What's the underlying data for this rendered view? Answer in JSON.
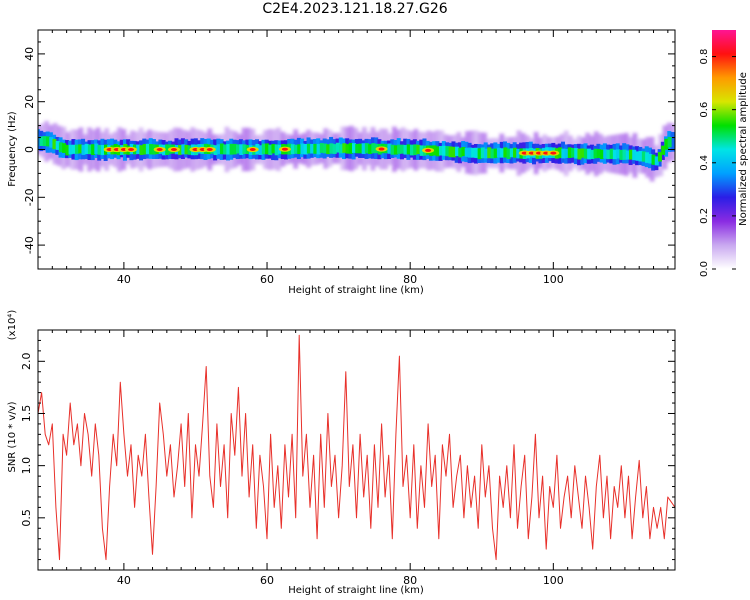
{
  "figure": {
    "title": "C2E4.2023.121.18.27.G26"
  },
  "chart_data": [
    {
      "type": "heatmap",
      "xlabel": "Height of straight line (km)",
      "ylabel": "Frequency (Hz)",
      "xlim": [
        28,
        117
      ],
      "ylim": [
        -50,
        50
      ],
      "xticks": [
        40,
        60,
        80,
        100
      ],
      "yticks": [
        -40,
        -20,
        0,
        20,
        40
      ],
      "grid": false,
      "colormap": [
        "#ffffff",
        "#c9a8f0",
        "#8a2be2",
        "#2a1ee6",
        "#00a0ff",
        "#00e5e5",
        "#00e000",
        "#d8e600",
        "#ff9a00",
        "#ff1010",
        "#ff1493"
      ],
      "colorbar": {
        "label": "Normalized spectral amplitude",
        "range": [
          0.0,
          0.9
        ],
        "ticks": [
          0.0,
          0.2,
          0.4,
          0.6,
          0.8
        ]
      },
      "band": {
        "center_hz": [
          [
            28,
            4
          ],
          [
            30,
            3
          ],
          [
            32,
            0
          ],
          [
            40,
            0
          ],
          [
            50,
            0
          ],
          [
            60,
            0
          ],
          [
            70,
            0.5
          ],
          [
            80,
            0
          ],
          [
            90,
            -1.5
          ],
          [
            100,
            -1.5
          ],
          [
            110,
            -2
          ],
          [
            113,
            -3
          ],
          [
            114.5,
            -5
          ],
          [
            116,
            3
          ]
        ],
        "halfwidth_hz": 2.5,
        "hot_spots_km": [
          38,
          39,
          40,
          41,
          45,
          47,
          50,
          51,
          52,
          58,
          62.5,
          76,
          82.5,
          96,
          97,
          98,
          99,
          100
        ]
      }
    },
    {
      "type": "line",
      "xlabel": "Height of straight line (km)",
      "ylabel": "SNR (10 * v/v)",
      "yscale_label": "(x10⁴)",
      "xlim": [
        28,
        117
      ],
      "ylim": [
        0,
        2.3
      ],
      "xticks": [
        40,
        60,
        80,
        100
      ],
      "yticks": [
        0.5,
        1.0,
        1.5,
        2.0
      ],
      "grid": false,
      "series": [
        {
          "color": "#e8302a",
          "points": [
            [
              28.0,
              1.5
            ],
            [
              28.5,
              1.7
            ],
            [
              29.0,
              1.3
            ],
            [
              29.5,
              1.2
            ],
            [
              30.0,
              1.4
            ],
            [
              30.5,
              0.6
            ],
            [
              31.0,
              0.1
            ],
            [
              31.5,
              1.3
            ],
            [
              32.0,
              1.1
            ],
            [
              32.5,
              1.6
            ],
            [
              33.0,
              1.2
            ],
            [
              33.5,
              1.4
            ],
            [
              34.0,
              1.0
            ],
            [
              34.5,
              1.5
            ],
            [
              35.0,
              1.3
            ],
            [
              35.5,
              0.9
            ],
            [
              36.0,
              1.4
            ],
            [
              36.5,
              1.1
            ],
            [
              37.0,
              0.4
            ],
            [
              37.5,
              0.1
            ],
            [
              38.0,
              0.8
            ],
            [
              38.5,
              1.3
            ],
            [
              39.0,
              1.0
            ],
            [
              39.5,
              1.8
            ],
            [
              40.0,
              1.3
            ],
            [
              40.5,
              0.9
            ],
            [
              41.0,
              1.2
            ],
            [
              41.5,
              0.6
            ],
            [
              42.0,
              1.1
            ],
            [
              42.5,
              0.9
            ],
            [
              43.0,
              1.3
            ],
            [
              43.5,
              0.7
            ],
            [
              44.0,
              0.15
            ],
            [
              44.5,
              0.8
            ],
            [
              45.0,
              1.6
            ],
            [
              45.5,
              1.3
            ],
            [
              46.0,
              0.9
            ],
            [
              46.5,
              1.2
            ],
            [
              47.0,
              0.7
            ],
            [
              47.5,
              1.0
            ],
            [
              48.0,
              1.4
            ],
            [
              48.5,
              0.8
            ],
            [
              49.0,
              1.5
            ],
            [
              49.5,
              0.5
            ],
            [
              50.0,
              1.2
            ],
            [
              50.5,
              0.9
            ],
            [
              51.0,
              1.4
            ],
            [
              51.5,
              1.95
            ],
            [
              52.0,
              0.9
            ],
            [
              52.5,
              0.6
            ],
            [
              53.0,
              1.4
            ],
            [
              53.5,
              0.8
            ],
            [
              54.0,
              1.2
            ],
            [
              54.5,
              0.5
            ],
            [
              55.0,
              1.5
            ],
            [
              55.5,
              1.1
            ],
            [
              56.0,
              1.75
            ],
            [
              56.5,
              0.9
            ],
            [
              57.0,
              1.5
            ],
            [
              57.5,
              0.7
            ],
            [
              58.0,
              1.2
            ],
            [
              58.5,
              0.4
            ],
            [
              59.0,
              1.1
            ],
            [
              59.5,
              0.8
            ],
            [
              60.0,
              0.3
            ],
            [
              60.5,
              1.3
            ],
            [
              61.0,
              0.6
            ],
            [
              61.5,
              1.0
            ],
            [
              62.0,
              0.4
            ],
            [
              62.5,
              1.2
            ],
            [
              63.0,
              0.7
            ],
            [
              63.5,
              1.3
            ],
            [
              64.0,
              0.5
            ],
            [
              64.5,
              2.25
            ],
            [
              65.0,
              0.9
            ],
            [
              65.5,
              1.3
            ],
            [
              66.0,
              0.6
            ],
            [
              66.5,
              1.1
            ],
            [
              67.0,
              0.3
            ],
            [
              67.5,
              1.3
            ],
            [
              68.0,
              0.6
            ],
            [
              68.5,
              1.5
            ],
            [
              69.0,
              0.8
            ],
            [
              69.5,
              1.1
            ],
            [
              70.0,
              0.5
            ],
            [
              70.5,
              1.0
            ],
            [
              71.0,
              1.9
            ],
            [
              71.5,
              0.8
            ],
            [
              72.0,
              1.2
            ],
            [
              72.5,
              0.5
            ],
            [
              73.0,
              1.3
            ],
            [
              73.5,
              0.7
            ],
            [
              74.0,
              1.1
            ],
            [
              74.5,
              0.4
            ],
            [
              75.0,
              1.2
            ],
            [
              75.5,
              0.6
            ],
            [
              76.0,
              1.4
            ],
            [
              76.5,
              0.7
            ],
            [
              77.0,
              1.1
            ],
            [
              77.5,
              0.3
            ],
            [
              78.0,
              1.3
            ],
            [
              78.5,
              2.05
            ],
            [
              79.0,
              0.8
            ],
            [
              79.5,
              1.1
            ],
            [
              80.0,
              0.5
            ],
            [
              80.5,
              1.2
            ],
            [
              81.0,
              0.4
            ],
            [
              81.5,
              1.0
            ],
            [
              82.0,
              0.6
            ],
            [
              82.5,
              1.4
            ],
            [
              83.0,
              0.8
            ],
            [
              83.5,
              1.1
            ],
            [
              84.0,
              0.3
            ],
            [
              84.5,
              1.2
            ],
            [
              85.0,
              0.9
            ],
            [
              85.5,
              1.3
            ],
            [
              86.0,
              0.6
            ],
            [
              86.5,
              0.9
            ],
            [
              87.0,
              1.1
            ],
            [
              87.5,
              0.5
            ],
            [
              88.0,
              1.0
            ],
            [
              88.5,
              0.6
            ],
            [
              89.0,
              0.9
            ],
            [
              89.5,
              0.4
            ],
            [
              90.0,
              1.2
            ],
            [
              90.5,
              0.7
            ],
            [
              91.0,
              1.0
            ],
            [
              91.5,
              0.4
            ],
            [
              92.0,
              0.1
            ],
            [
              92.5,
              0.9
            ],
            [
              93.0,
              0.6
            ],
            [
              93.5,
              1.0
            ],
            [
              94.0,
              0.5
            ],
            [
              94.5,
              1.2
            ],
            [
              95.0,
              0.4
            ],
            [
              95.5,
              0.8
            ],
            [
              96.0,
              1.1
            ],
            [
              96.5,
              0.3
            ],
            [
              97.0,
              0.7
            ],
            [
              97.5,
              1.3
            ],
            [
              98.0,
              0.5
            ],
            [
              98.5,
              0.9
            ],
            [
              99.0,
              0.2
            ],
            [
              99.5,
              0.8
            ],
            [
              100.0,
              0.6
            ],
            [
              100.5,
              1.1
            ],
            [
              101.0,
              0.4
            ],
            [
              101.5,
              0.7
            ],
            [
              102.0,
              0.9
            ],
            [
              102.5,
              0.5
            ],
            [
              103.0,
              1.0
            ],
            [
              103.5,
              0.7
            ],
            [
              104.0,
              0.4
            ],
            [
              104.5,
              0.9
            ],
            [
              105.0,
              0.6
            ],
            [
              105.5,
              0.2
            ],
            [
              106.0,
              0.8
            ],
            [
              106.5,
              1.1
            ],
            [
              107.0,
              0.5
            ],
            [
              107.5,
              0.9
            ],
            [
              108.0,
              0.3
            ],
            [
              108.5,
              0.8
            ],
            [
              109.0,
              0.6
            ],
            [
              109.5,
              1.0
            ],
            [
              110.0,
              0.5
            ],
            [
              110.5,
              0.9
            ],
            [
              111.0,
              0.3
            ],
            [
              111.5,
              0.7
            ],
            [
              112.0,
              1.05
            ],
            [
              112.5,
              0.5
            ],
            [
              113.0,
              0.8
            ],
            [
              113.5,
              0.3
            ],
            [
              114.0,
              0.6
            ],
            [
              114.5,
              0.4
            ],
            [
              115.0,
              0.6
            ],
            [
              115.5,
              0.3
            ],
            [
              116.0,
              0.7
            ],
            [
              116.5,
              0.65
            ],
            [
              117.0,
              0.6
            ]
          ]
        }
      ]
    }
  ]
}
